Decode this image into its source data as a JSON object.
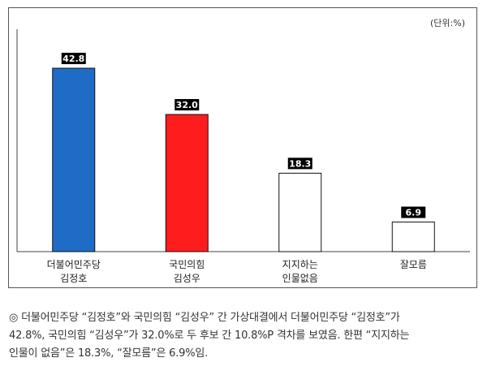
{
  "chart_data": {
    "type": "bar",
    "unit_label": "(단위:%)",
    "categories": [
      [
        "더불어민주당",
        "김정호"
      ],
      [
        "국민의힘",
        "김성우"
      ],
      [
        "지지하는",
        "인물없음"
      ],
      [
        "잘모름"
      ]
    ],
    "values": [
      42.8,
      32.0,
      18.3,
      6.9
    ],
    "value_labels": [
      "42.8",
      "32.0",
      "18.3",
      "6.9"
    ],
    "ylim": [
      0,
      50
    ],
    "colors": [
      "#1f6cc6",
      "#ff1c1c",
      "#ffffff",
      "#ffffff"
    ],
    "grid": false,
    "legend": "none"
  },
  "caption": {
    "lines": [
      "◎ 더불어민주당 “김정호”와 국민의힘 “김성우” 간 가상대결에서 더불어민주당 “김정호”가",
      "42.8%, 국민의힘 “김성우”가 32.0%로 두 후보 간 10.8%P 격차를 보였음. 한편 “지지하는",
      "인물이 없음”은 18.3%, “잘모름”은 6.9%임."
    ]
  }
}
